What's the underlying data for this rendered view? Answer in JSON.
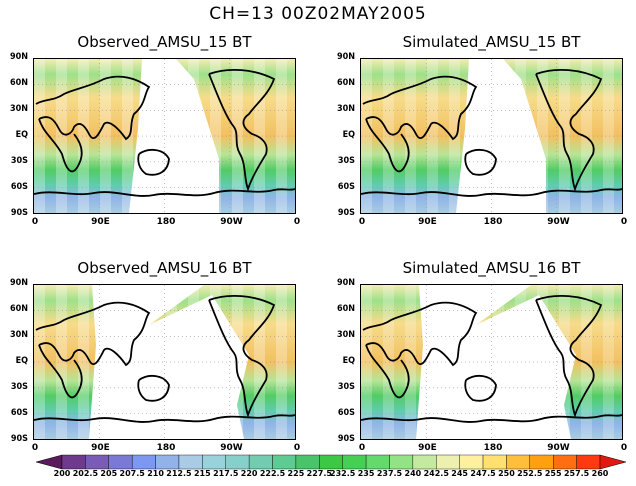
{
  "title": "CH=13   00Z02MAY2005",
  "panels": [
    {
      "title": "Observed_AMSU_15 BT",
      "gap": "pacific",
      "strength": 1.0
    },
    {
      "title": "Simulated_AMSU_15 BT",
      "gap": "pacific",
      "strength": 0.85
    },
    {
      "title": "Observed_AMSU_16 BT",
      "gap": "westpac",
      "strength": 1.0
    },
    {
      "title": "Simulated_AMSU_16 BT",
      "gap": "westpac",
      "strength": 0.8
    }
  ],
  "y_ticks": [
    "90N",
    "60N",
    "30N",
    "EQ",
    "30S",
    "60S",
    "90S"
  ],
  "x_ticks": [
    "0",
    "90E",
    "180",
    "90W",
    "0"
  ],
  "colorbar": {
    "labels": [
      "200",
      "202.5",
      "205",
      "207.5",
      "210",
      "212.5",
      "215",
      "217.5",
      "220",
      "222.5",
      "225",
      "227.5",
      "232.5",
      "235",
      "237.5",
      "240",
      "242.5",
      "245",
      "247.5",
      "250",
      "252.5",
      "255",
      "257.5",
      "260"
    ],
    "colors": [
      "#5a1a5e",
      "#6e3a8e",
      "#7a5cb8",
      "#7a7ad6",
      "#7c98f2",
      "#92b2ea",
      "#aacbe6",
      "#9ad2dc",
      "#86d0cc",
      "#72cdb0",
      "#5ecc92",
      "#4ac46a",
      "#3cc844",
      "#46d052",
      "#64da6c",
      "#94e286",
      "#c4eaa0",
      "#eef0b0",
      "#fff0a0",
      "#ffe070",
      "#ffbe3c",
      "#ffa010",
      "#ff6e10",
      "#ff3a10",
      "#e01a10"
    ]
  }
}
